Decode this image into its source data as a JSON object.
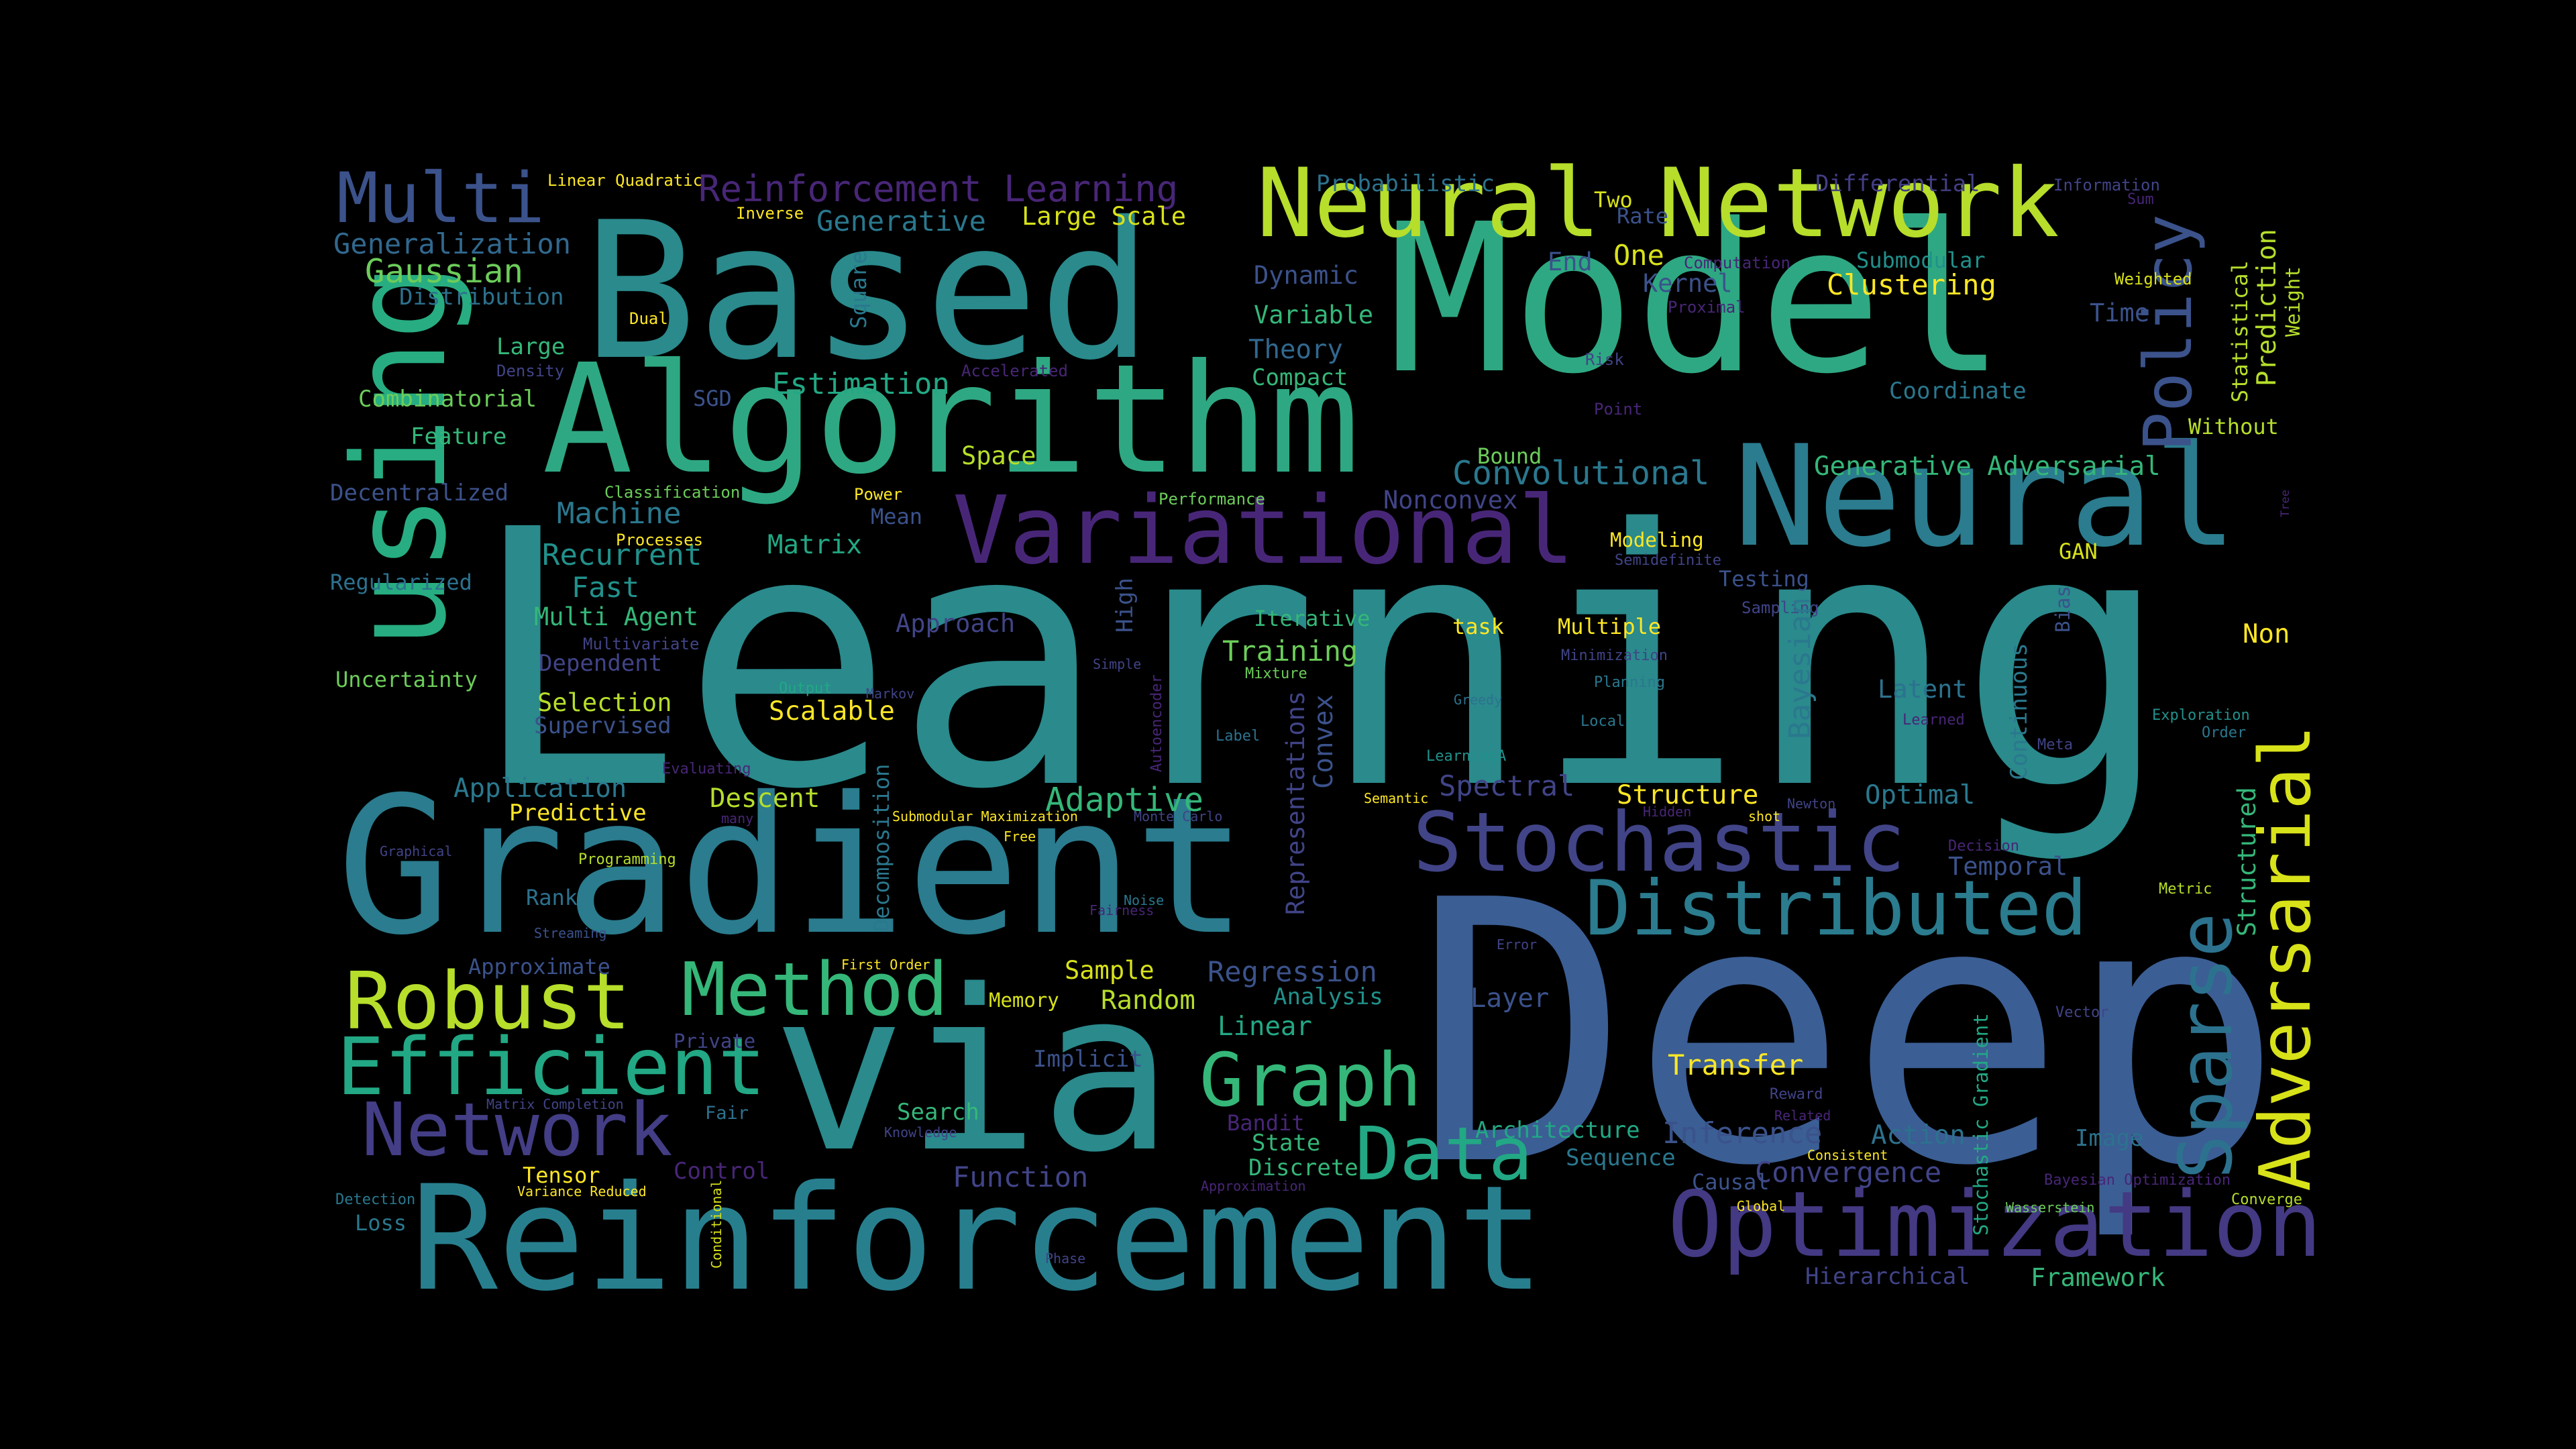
{
  "words": [
    {
      "text": "Learning",
      "color": "#2a8a8c"
    },
    {
      "text": "Deep",
      "color": "#3b5e94"
    },
    {
      "text": "Model",
      "color": "#2ea882"
    },
    {
      "text": "Based",
      "color": "#2a8a8c"
    },
    {
      "text": "Gradient",
      "color": "#2a7c8e"
    },
    {
      "text": "via",
      "color": "#2a8a8c"
    },
    {
      "text": "Reinforcement",
      "color": "#277f8e"
    },
    {
      "text": "Algorithm",
      "color": "#2ea882"
    },
    {
      "text": "Neural Network",
      "color": "#b6de2b"
    },
    {
      "text": "Neural",
      "color": "#2a7c8e"
    },
    {
      "text": "using",
      "color": "#27ad81"
    },
    {
      "text": "Variational",
      "color": "#482677"
    },
    {
      "text": "Stochastic",
      "color": "#414487"
    },
    {
      "text": "Distributed",
      "color": "#2a7c8e"
    },
    {
      "text": "Optimization",
      "color": "#443983"
    },
    {
      "text": "Adversarial",
      "color": "#d8e219"
    },
    {
      "text": "Sparse",
      "color": "#2c728e"
    },
    {
      "text": "Policy",
      "color": "#3b528b"
    },
    {
      "text": "Method",
      "color": "#35b779"
    },
    {
      "text": "Robust",
      "color": "#b6de2b"
    },
    {
      "text": "Efficient",
      "color": "#22a884"
    },
    {
      "text": "Network",
      "color": "#433e85"
    },
    {
      "text": "Graph",
      "color": "#35b779"
    },
    {
      "text": "Data",
      "color": "#22a884"
    },
    {
      "text": "Multi",
      "color": "#3b528b"
    },
    {
      "text": "Generalization",
      "color": "#31688e"
    },
    {
      "text": "Gaussian",
      "color": "#6ccd5a"
    },
    {
      "text": "Distribution",
      "color": "#2c728e"
    },
    {
      "text": "Linear Quadratic",
      "color": "#fde725"
    },
    {
      "text": "Reinforcement Learning",
      "color": "#482677"
    },
    {
      "text": "Generative",
      "color": "#2a788e"
    },
    {
      "text": "Large Scale",
      "color": "#d8e219"
    },
    {
      "text": "Inverse",
      "color": "#fde725"
    },
    {
      "text": "Probabilistic",
      "color": "#2c728e"
    },
    {
      "text": "Two",
      "color": "#d8e219"
    },
    {
      "text": "Rate",
      "color": "#3b528b"
    },
    {
      "text": "One",
      "color": "#d8e219"
    },
    {
      "text": "End",
      "color": "#3b528b"
    },
    {
      "text": "Differential",
      "color": "#433e85"
    },
    {
      "text": "Information",
      "color": "#414487"
    },
    {
      "text": "Sum",
      "color": "#482677"
    },
    {
      "text": "Submodular",
      "color": "#21918c"
    },
    {
      "text": "Computation",
      "color": "#482677"
    },
    {
      "text": "Kernel",
      "color": "#3b528b"
    },
    {
      "text": "Clustering",
      "color": "#fde725"
    },
    {
      "text": "Weighted",
      "color": "#d8e219"
    },
    {
      "text": "Statistical",
      "color": "#b6de2b"
    },
    {
      "text": "Prediction",
      "color": "#b6de2b"
    },
    {
      "text": "Weight",
      "color": "#b6de2b"
    },
    {
      "text": "Dynamic",
      "color": "#3b528b"
    },
    {
      "text": "Variable",
      "color": "#35b779"
    },
    {
      "text": "Theory",
      "color": "#31688e"
    },
    {
      "text": "Compact",
      "color": "#35b779"
    },
    {
      "text": "Proximal",
      "color": "#482677"
    },
    {
      "text": "Time",
      "color": "#3b528b"
    },
    {
      "text": "Coordinate",
      "color": "#2a788e"
    },
    {
      "text": "Without",
      "color": "#b6de2b"
    },
    {
      "text": "Large",
      "color": "#35b779"
    },
    {
      "text": "Density",
      "color": "#414487"
    },
    {
      "text": "Dual",
      "color": "#fde725"
    },
    {
      "text": "Square",
      "color": "#2a788e"
    },
    {
      "text": "Combinatorial",
      "color": "#6ccd5a"
    },
    {
      "text": "SGD",
      "color": "#3b528b"
    },
    {
      "text": "Estimation",
      "color": "#22a884"
    },
    {
      "text": "Accelerated",
      "color": "#482677"
    },
    {
      "text": "Risk",
      "color": "#414487"
    },
    {
      "text": "Point",
      "color": "#482677"
    },
    {
      "text": "Feature",
      "color": "#35b779"
    },
    {
      "text": "Space",
      "color": "#b6de2b"
    },
    {
      "text": "Bound",
      "color": "#6ccd5a"
    },
    {
      "text": "Convolutional",
      "color": "#2a788e"
    },
    {
      "text": "Generative Adversarial",
      "color": "#35b779"
    },
    {
      "text": "Decentralized",
      "color": "#3b528b"
    },
    {
      "text": "Classification",
      "color": "#6ccd5a"
    },
    {
      "text": "Power",
      "color": "#fde725"
    },
    {
      "text": "Performance",
      "color": "#6ccd5a"
    },
    {
      "text": "Nonconvex",
      "color": "#414487"
    },
    {
      "text": "Machine",
      "color": "#2a788e"
    },
    {
      "text": "Mean",
      "color": "#3b528b"
    },
    {
      "text": "Recurrent",
      "color": "#21918c"
    },
    {
      "text": "Processes",
      "color": "#fde725"
    },
    {
      "text": "Matrix",
      "color": "#22a884"
    },
    {
      "text": "Modeling",
      "color": "#fde725"
    },
    {
      "text": "Semidefinite",
      "color": "#414487"
    },
    {
      "text": "Testing",
      "color": "#3b528b"
    },
    {
      "text": "GAN",
      "color": "#d8e219"
    },
    {
      "text": "Regularized",
      "color": "#2c728e"
    },
    {
      "text": "Fast",
      "color": "#21918c"
    },
    {
      "text": "Multi Agent",
      "color": "#35b779"
    },
    {
      "text": "Multivariate",
      "color": "#414487"
    },
    {
      "text": "Approach",
      "color": "#414487"
    },
    {
      "text": "High",
      "color": "#3b528b"
    },
    {
      "text": "Iterative",
      "color": "#35b779"
    },
    {
      "text": "task",
      "color": "#fde725"
    },
    {
      "text": "Multiple",
      "color": "#fde725"
    },
    {
      "text": "Sampling",
      "color": "#414487"
    },
    {
      "text": "Bayesian",
      "color": "#2a788e"
    },
    {
      "text": "Bias",
      "color": "#3b528b"
    },
    {
      "text": "Non",
      "color": "#fde725"
    },
    {
      "text": "Uncertainty",
      "color": "#6ccd5a"
    },
    {
      "text": "Dependent",
      "color": "#414487"
    },
    {
      "text": "Output",
      "color": "#22a884"
    },
    {
      "text": "Markov",
      "color": "#414487"
    },
    {
      "text": "Simple",
      "color": "#414487"
    },
    {
      "text": "Training",
      "color": "#6ccd5a"
    },
    {
      "text": "Mixture",
      "color": "#6ccd5a"
    },
    {
      "text": "Minimization",
      "color": "#414487"
    },
    {
      "text": "Planning",
      "color": "#2a788e"
    },
    {
      "text": "Latent",
      "color": "#2c728e"
    },
    {
      "text": "Continuous",
      "color": "#2a788e"
    },
    {
      "text": "Selection",
      "color": "#b6de2b"
    },
    {
      "text": "Scalable",
      "color": "#fde725"
    },
    {
      "text": "Supervised",
      "color": "#3b528b"
    },
    {
      "text": "Autoencoder",
      "color": "#482677"
    },
    {
      "text": "Representations",
      "color": "#414487"
    },
    {
      "text": "Convex",
      "color": "#3b528b"
    },
    {
      "text": "Greedy",
      "color": "#2c728e"
    },
    {
      "text": "Local",
      "color": "#2a788e"
    },
    {
      "text": "Learned",
      "color": "#482677"
    },
    {
      "text": "Exploration",
      "color": "#21918c"
    },
    {
      "text": "Order",
      "color": "#2a788e"
    },
    {
      "text": "Label",
      "color": "#2c728e"
    },
    {
      "text": "LearningA",
      "color": "#21918c"
    },
    {
      "text": "Meta",
      "color": "#414487"
    },
    {
      "text": "Evaluating",
      "color": "#482677"
    },
    {
      "text": "Application",
      "color": "#2a788e"
    },
    {
      "text": "Decomposition",
      "color": "#2a788e"
    },
    {
      "text": "Adaptive",
      "color": "#35b779"
    },
    {
      "text": "Spectral",
      "color": "#414487"
    },
    {
      "text": "Structure",
      "color": "#fde725"
    },
    {
      "text": "Optimal",
      "color": "#2a788e"
    },
    {
      "text": "Predictive",
      "color": "#fde725"
    },
    {
      "text": "Descent",
      "color": "#b6de2b"
    },
    {
      "text": "Submodular Maximization",
      "color": "#fde725"
    },
    {
      "text": "Monte Carlo",
      "color": "#414487"
    },
    {
      "text": "Semantic",
      "color": "#fde725"
    },
    {
      "text": "Hidden",
      "color": "#482677"
    },
    {
      "text": "shot",
      "color": "#fde725"
    },
    {
      "text": "Newton",
      "color": "#414487"
    },
    {
      "text": "many",
      "color": "#482677"
    },
    {
      "text": "Free",
      "color": "#fde725"
    },
    {
      "text": "Decision",
      "color": "#482677"
    },
    {
      "text": "Temporal",
      "color": "#3b528b"
    },
    {
      "text": "Graphical",
      "color": "#414487"
    },
    {
      "text": "Programming",
      "color": "#b6de2b"
    },
    {
      "text": "Structured",
      "color": "#35b779"
    },
    {
      "text": "Rank",
      "color": "#2c728e"
    },
    {
      "text": "Metric",
      "color": "#b6de2b"
    },
    {
      "text": "Noise",
      "color": "#2a788e"
    },
    {
      "text": "Fairness",
      "color": "#482677"
    },
    {
      "text": "Streaming",
      "color": "#3b528b"
    },
    {
      "text": "Stochastic Gradient",
      "color": "#22a884"
    },
    {
      "text": "Approximate",
      "color": "#3b528b"
    },
    {
      "text": "First Order",
      "color": "#fde725"
    },
    {
      "text": "Sample",
      "color": "#d8e219"
    },
    {
      "text": "Regression",
      "color": "#3b528b"
    },
    {
      "text": "Error",
      "color": "#414487"
    },
    {
      "text": "Random",
      "color": "#b6de2b"
    },
    {
      "text": "Analysis",
      "color": "#21918c"
    },
    {
      "text": "Memory",
      "color": "#d8e219"
    },
    {
      "text": "Layer",
      "color": "#3b528b"
    },
    {
      "text": "Private",
      "color": "#414487"
    },
    {
      "text": "Linear",
      "color": "#22a884"
    },
    {
      "text": "Vector",
      "color": "#414487"
    },
    {
      "text": "Implicit",
      "color": "#3b528b"
    },
    {
      "text": "Transfer",
      "color": "#fde725"
    },
    {
      "text": "Matrix Completion",
      "color": "#414487"
    },
    {
      "text": "Reward",
      "color": "#414487"
    },
    {
      "text": "Fair",
      "color": "#2c728e"
    },
    {
      "text": "Search",
      "color": "#35b779"
    },
    {
      "text": "Related",
      "color": "#482677"
    },
    {
      "text": "Bandit",
      "color": "#482677"
    },
    {
      "text": "Knowledge",
      "color": "#414487"
    },
    {
      "text": "Architecture",
      "color": "#22a884"
    },
    {
      "text": "Inference",
      "color": "#3b528b"
    },
    {
      "text": "Action",
      "color": "#2c728e"
    },
    {
      "text": "Image",
      "color": "#2c728e"
    },
    {
      "text": "State",
      "color": "#35b779"
    },
    {
      "text": "Sequence",
      "color": "#2a788e"
    },
    {
      "text": "Consistent",
      "color": "#fde725"
    },
    {
      "text": "Discrete",
      "color": "#35b779"
    },
    {
      "text": "Control",
      "color": "#482677"
    },
    {
      "text": "Tensor",
      "color": "#fde725"
    },
    {
      "text": "Variance Reduced",
      "color": "#fde725"
    },
    {
      "text": "Function",
      "color": "#414487"
    },
    {
      "text": "Approximation",
      "color": "#482677"
    },
    {
      "text": "Convergence",
      "color": "#414487"
    },
    {
      "text": "Causal",
      "color": "#3b528b"
    },
    {
      "text": "Bayesian Optimization",
      "color": "#482677"
    },
    {
      "text": "Converge",
      "color": "#b6de2b"
    },
    {
      "text": "Detection",
      "color": "#2a788e"
    },
    {
      "text": "Loss",
      "color": "#2a788e"
    },
    {
      "text": "Conditional",
      "color": "#d8e219"
    },
    {
      "text": "Global",
      "color": "#fde725"
    },
    {
      "text": "Wasserstein",
      "color": "#6ccd5a"
    },
    {
      "text": "Phase",
      "color": "#414487"
    },
    {
      "text": "Hierarchical",
      "color": "#414487"
    },
    {
      "text": "Framework",
      "color": "#35b779"
    },
    {
      "text": "Tree",
      "color": "#482677"
    }
  ]
}
